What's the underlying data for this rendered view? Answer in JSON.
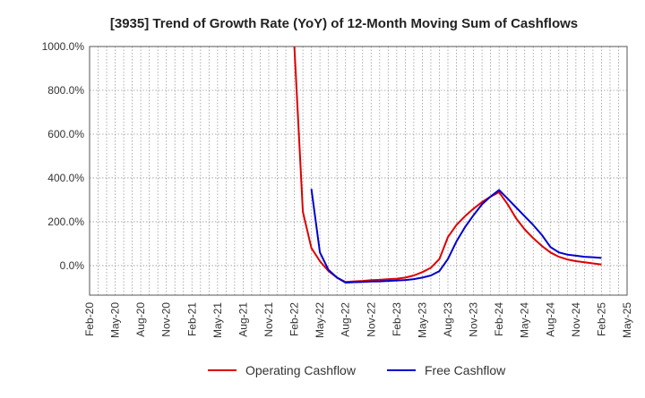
{
  "chart_data": {
    "type": "line",
    "title": "[3935]  Trend of Growth Rate (YoY) of 12-Month Moving Sum of Cashflows",
    "xlabel": "",
    "ylabel": "",
    "grid": true,
    "legend_position": "bottom-center",
    "x_tick_labels": [
      "Feb-20",
      "May-20",
      "Aug-20",
      "Nov-20",
      "Feb-21",
      "May-21",
      "Aug-21",
      "Nov-21",
      "Feb-22",
      "May-22",
      "Aug-22",
      "Nov-22",
      "Feb-23",
      "May-23",
      "Aug-23",
      "Nov-23",
      "Feb-24",
      "May-24",
      "Aug-24",
      "Nov-24",
      "Feb-25",
      "May-25"
    ],
    "y_tick_labels": [
      "1000.0%",
      "800.0%",
      "600.0%",
      "400.0%",
      "200.0%",
      "0.0%"
    ],
    "y_ticks": [
      1000,
      800,
      600,
      400,
      200,
      0
    ],
    "ylim": [
      -135,
      1000
    ],
    "xlim": [
      "2020-02",
      "2025-05"
    ],
    "series": [
      {
        "name": "Operating Cashflow",
        "color": "#dd0000",
        "x": [
          "2022-02",
          "2022-03",
          "2022-04",
          "2022-05",
          "2022-06",
          "2022-07",
          "2022-08",
          "2022-09",
          "2022-10",
          "2022-11",
          "2022-12",
          "2023-01",
          "2023-02",
          "2023-03",
          "2023-04",
          "2023-05",
          "2023-06",
          "2023-07",
          "2023-08",
          "2023-09",
          "2023-10",
          "2023-11",
          "2023-12",
          "2024-01",
          "2024-02",
          "2024-03",
          "2024-04",
          "2024-05",
          "2024-06",
          "2024-07",
          "2024-08",
          "2024-09",
          "2024-10",
          "2024-11",
          "2024-12",
          "2025-01",
          "2025-02"
        ],
        "values": [
          1000,
          245,
          80,
          20,
          -25,
          -55,
          -75,
          -72,
          -70,
          -67,
          -65,
          -62,
          -60,
          -55,
          -45,
          -30,
          -10,
          30,
          130,
          185,
          225,
          260,
          290,
          315,
          335,
          280,
          215,
          165,
          125,
          90,
          60,
          40,
          28,
          20,
          15,
          10,
          5
        ]
      },
      {
        "name": "Free Cashflow",
        "color": "#0000cc",
        "x": [
          "2022-04",
          "2022-05",
          "2022-06",
          "2022-07",
          "2022-08",
          "2022-09",
          "2022-10",
          "2022-11",
          "2022-12",
          "2023-01",
          "2023-02",
          "2023-03",
          "2023-04",
          "2023-05",
          "2023-06",
          "2023-07",
          "2023-08",
          "2023-09",
          "2023-10",
          "2023-11",
          "2023-12",
          "2024-01",
          "2024-02",
          "2024-03",
          "2024-04",
          "2024-05",
          "2024-06",
          "2024-07",
          "2024-08",
          "2024-09",
          "2024-10",
          "2024-11",
          "2024-12",
          "2025-01",
          "2025-02"
        ],
        "values": [
          350,
          60,
          -20,
          -55,
          -78,
          -76,
          -75,
          -73,
          -72,
          -70,
          -68,
          -66,
          -62,
          -55,
          -45,
          -25,
          30,
          110,
          175,
          230,
          280,
          315,
          345,
          305,
          265,
          225,
          185,
          140,
          85,
          60,
          50,
          45,
          40,
          38,
          35
        ]
      }
    ]
  }
}
